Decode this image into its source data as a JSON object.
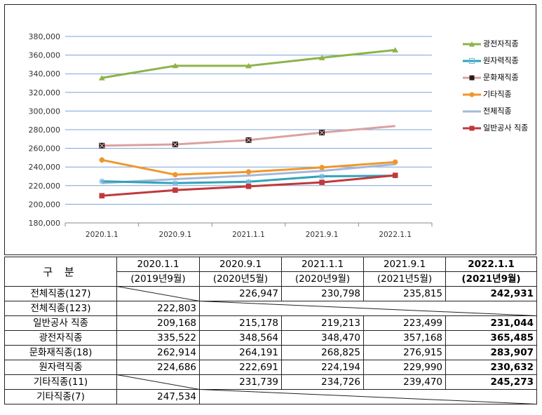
{
  "chart_data": {
    "type": "line",
    "categories": [
      "2020.1.1",
      "2020.9.1",
      "2021.1.1",
      "2021.9.1",
      "2022.1.1"
    ],
    "ylim": [
      180000,
      380000
    ],
    "yticks": [
      "180,000",
      "200,000",
      "220,000",
      "240,000",
      "260,000",
      "280,000",
      "300,000",
      "320,000",
      "340,000",
      "360,000",
      "380,000"
    ],
    "grid": true,
    "legend_position": "right",
    "series": [
      {
        "name": "광전자직종",
        "color": "#8db34a",
        "marker": "triangle",
        "values": [
          335522,
          348564,
          348470,
          357168,
          365485
        ]
      },
      {
        "name": "원자력직종",
        "color": "#31a3b8",
        "marker": "star",
        "values": [
          224686,
          222691,
          224194,
          229990,
          230632
        ]
      },
      {
        "name": "문화재직종",
        "color": "#dba1a1",
        "marker": "square-x",
        "values": [
          262914,
          264191,
          268825,
          276915,
          283907
        ]
      },
      {
        "name": "기타직종",
        "color": "#f0962e",
        "marker": "circle",
        "values": [
          247534,
          231739,
          234726,
          239470,
          245273
        ]
      },
      {
        "name": "전체직종",
        "color": "#a3b8d8",
        "marker": "none",
        "values": [
          222803,
          226947,
          230798,
          235815,
          242931
        ]
      },
      {
        "name": "일반공사 직종",
        "color": "#c0393b",
        "marker": "square",
        "values": [
          209168,
          215178,
          219213,
          223499,
          231044
        ]
      }
    ]
  },
  "table": {
    "gubun": "구 분",
    "headers": [
      {
        "top": "2020.1.1",
        "bottom": "(2019년9월)",
        "bold": false
      },
      {
        "top": "2020.9.1",
        "bottom": "(2020년5월)",
        "bold": false
      },
      {
        "top": "2021.1.1",
        "bottom": "(2020년9월)",
        "bold": false
      },
      {
        "top": "2021.9.1",
        "bottom": "(2021년5월)",
        "bold": false
      },
      {
        "top": "2022.1.1",
        "bottom": "(2021년9월)",
        "bold": true
      }
    ],
    "rows": [
      {
        "label": "전체직종(127)",
        "cells": [
          "",
          "226,947",
          "230,798",
          "235,815",
          "242,931"
        ]
      },
      {
        "label": "전체직종(123)",
        "cells": [
          "222,803",
          "",
          "",
          "",
          ""
        ]
      },
      {
        "label": "일반공사 직종",
        "cells": [
          "209,168",
          "215,178",
          "219,213",
          "223,499",
          "231,044"
        ]
      },
      {
        "label": "광전자직종",
        "cells": [
          "335,522",
          "348,564",
          "348,470",
          "357,168",
          "365,485"
        ]
      },
      {
        "label": "문화재직종(18)",
        "cells": [
          "262,914",
          "264,191",
          "268,825",
          "276,915",
          "283,907"
        ]
      },
      {
        "label": "원자력직종",
        "cells": [
          "224,686",
          "222,691",
          "224,194",
          "229,990",
          "230,632"
        ]
      },
      {
        "label": "기타직종(11)",
        "cells": [
          "",
          "231,739",
          "234,726",
          "239,470",
          "245,273"
        ]
      },
      {
        "label": "기타직종(7)",
        "cells": [
          "247,534",
          "",
          "",
          "",
          ""
        ]
      }
    ]
  }
}
